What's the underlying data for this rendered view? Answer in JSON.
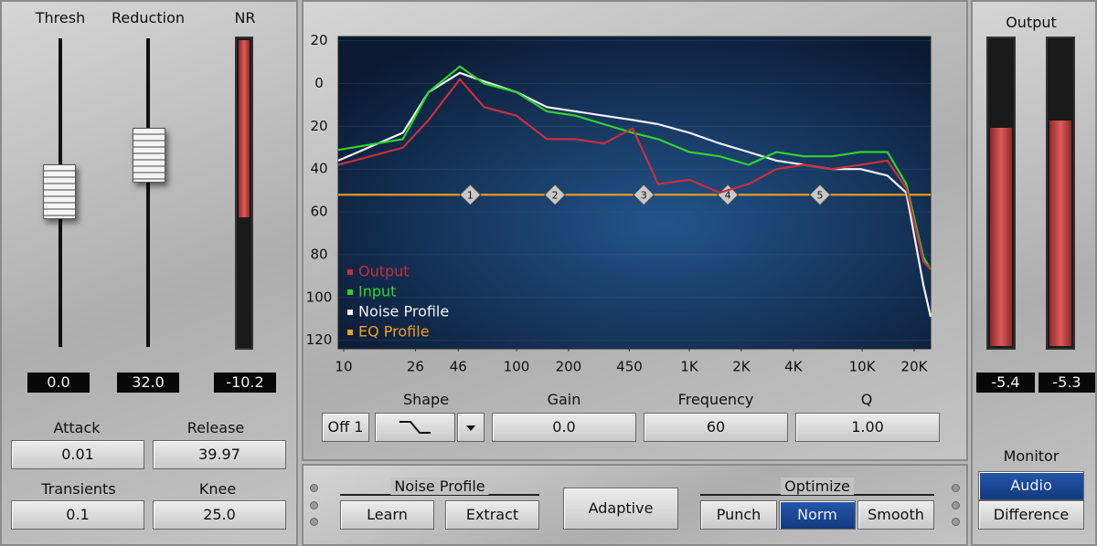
{
  "left_panel": {
    "labels": [
      "Thresh",
      "Reduction",
      "NR"
    ],
    "readouts": [
      "0.0",
      "32.0",
      "-10.2"
    ],
    "controls": [
      {
        "label": "Attack",
        "value": "0.01"
      },
      {
        "label": "Release",
        "value": "39.97"
      },
      {
        "label": "Transients",
        "value": "0.1"
      },
      {
        "label": "Knee",
        "value": "25.0"
      }
    ]
  },
  "chart_data": {
    "type": "line",
    "x": [
      9.3,
      22,
      31,
      47,
      65,
      100,
      150,
      220,
      320,
      470,
      660,
      1000,
      1500,
      2200,
      3200,
      4600,
      6700,
      9800,
      14000,
      18000,
      22600,
      24900
    ],
    "xlim": [
      9.3,
      24900
    ],
    "xscale": "log",
    "xticks": [
      10,
      26,
      46,
      100,
      200,
      450,
      {
        "value": 1000,
        "label": "1K"
      },
      {
        "value": 2000,
        "label": "2K"
      },
      {
        "value": 4000,
        "label": "4K"
      },
      {
        "value": 10000,
        "label": "10K"
      },
      {
        "value": 20000,
        "label": "20K"
      }
    ],
    "ylim": [
      -124,
      22
    ],
    "yticks": [
      20,
      0,
      {
        "value": -20,
        "label": "20"
      },
      {
        "value": -40,
        "label": "40"
      },
      {
        "value": -60,
        "label": "60"
      },
      {
        "value": -80,
        "label": "80"
      },
      {
        "value": -100,
        "label": "100"
      },
      {
        "value": -120,
        "label": "120"
      }
    ],
    "grid": true,
    "legend": "lower-left",
    "series": [
      {
        "name": "Output",
        "color": "#c8303a",
        "values": [
          -38,
          -30,
          -17,
          2,
          -11,
          -15,
          -26,
          -26,
          -28,
          -21,
          -47,
          -45,
          -51,
          -47,
          -40,
          -38,
          -40,
          -38,
          -36,
          -49,
          -83,
          -87
        ]
      },
      {
        "name": "Input",
        "color": "#2ed42e",
        "values": [
          -31,
          -26,
          -4,
          8,
          0,
          -4,
          -13,
          -15,
          -19,
          -23,
          -26,
          -32,
          -34,
          -38,
          -32,
          -34,
          -34,
          -32,
          -32,
          -47,
          -81,
          -87
        ]
      },
      {
        "name": "Noise Profile",
        "color": "#f2f2f8",
        "values": [
          -36,
          -23,
          -4,
          5,
          1,
          -4,
          -11,
          -13,
          -15,
          -17,
          -19,
          -23,
          -28,
          -32,
          -36,
          -38,
          -40,
          -40,
          -43,
          -51,
          -94,
          -109
        ]
      },
      {
        "name": "EQ Profile",
        "color": "#f0a020",
        "x": [
          9.3,
          54,
          167,
          545,
          1670,
          5700,
          24900
        ],
        "values": [
          -52,
          -52,
          -52,
          -52,
          -52,
          -52,
          -52
        ],
        "node_labels": [
          null,
          "1",
          "2",
          "3",
          "4",
          "5",
          null
        ]
      }
    ]
  },
  "eq_controls": {
    "band": "Off 1",
    "shape_label": "Shape",
    "fields": [
      {
        "label": "Gain",
        "value": "0.0"
      },
      {
        "label": "Frequency",
        "value": "60"
      },
      {
        "label": "Q",
        "value": "1.00"
      }
    ]
  },
  "noise_profile": {
    "title": "Noise Profile",
    "buttons": [
      "Learn",
      "Extract"
    ]
  },
  "adaptive": "Adaptive",
  "optimize": {
    "title": "Optimize",
    "buttons": [
      "Punch",
      "Norm",
      "Smooth"
    ],
    "selected": 1
  },
  "output": {
    "title": "Output",
    "readouts": [
      "-5.4",
      "-5.3"
    ]
  },
  "monitor": {
    "title": "Monitor",
    "buttons": [
      "Audio",
      "Difference"
    ],
    "selected": 0
  }
}
